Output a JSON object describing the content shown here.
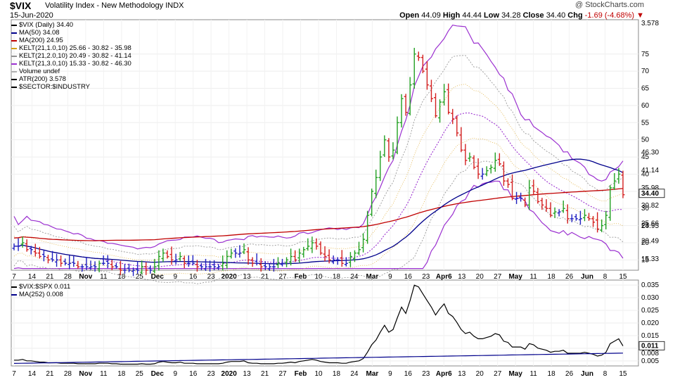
{
  "header": {
    "symbol": "$VIX",
    "name": "Volatility Index - New Methodology  INDX",
    "date": "15-Jun-2020",
    "brand": "@ StockCharts.com",
    "open_label": "Open",
    "open": "44.09",
    "high_label": "High",
    "high": "44.44",
    "low_label": "Low",
    "low": "34.28",
    "close_label": "Close",
    "close": "34.40",
    "chg_label": "Chg",
    "chg": "-1.69 (-4.68%)",
    "chg_icon": "down-triangle-icon"
  },
  "legend": [
    {
      "text": "$VIX (Daily) 34.40",
      "color": "#000000"
    },
    {
      "text": "MA(50) 34.08",
      "color": "#00008b"
    },
    {
      "text": "MA(200) 24.95",
      "color": "#c00000"
    },
    {
      "text": "KELT(21,1.0,10) 25.66 - 30.82 - 35.98",
      "color": "#d4a017"
    },
    {
      "text": "KELT(21,2.0,10) 20.49 - 30.82 - 41.14",
      "color": "#909090"
    },
    {
      "text": "KELT(21,3.0,10) 15.33 - 30.82 - 46.30",
      "color": "#9b30d0"
    },
    {
      "text": "Volume undef",
      "color": "#b0b0b0"
    },
    {
      "text": "ATR(200) 3.578",
      "color": "#000000"
    },
    {
      "text": "$SECTOR:$INDUSTRY",
      "color": "#000000"
    }
  ],
  "legend2": [
    {
      "text": "$VIX:$SPX 0.011",
      "color": "#000000"
    },
    {
      "text": "MA(252) 0.008",
      "color": "#00008b"
    }
  ],
  "colors": {
    "up": "#22a022",
    "down": "#d42020",
    "neutral": "#2020c0",
    "ma50": "#00008b",
    "ma200": "#c00000",
    "k1": "#e0b040",
    "k2": "#999999",
    "k3": "#9b30d0"
  },
  "chart_data": [
    {
      "type": "candlestick",
      "title": "$VIX (Daily)",
      "x_tick_labels": [
        "7",
        "14",
        "21",
        "28",
        "Nov",
        "11",
        "18",
        "25",
        "Dec",
        "9",
        "16",
        "23",
        "2020",
        "13",
        "21",
        "27",
        "Feb",
        "10",
        "18",
        "24",
        "Mar",
        "9",
        "16",
        "23",
        "Apr6",
        "13",
        "20",
        "27",
        "May",
        "11",
        "18",
        "26",
        "Jun",
        "8",
        "15"
      ],
      "y_tick_labels": [
        "75",
        "70",
        "65",
        "60",
        "55",
        "50",
        "45",
        "40",
        "35",
        "30",
        "25",
        "20",
        "15"
      ],
      "ylim": [
        12,
        85
      ],
      "right_labels": [
        "3.578",
        "46.30",
        "41.14",
        "35.98",
        "34.40",
        "30.82",
        "25.66",
        "24.95",
        "20.49",
        "15.33"
      ],
      "close_series": [
        19,
        19,
        20,
        18,
        18,
        17,
        16,
        16,
        15,
        15,
        15,
        14,
        14,
        14,
        14,
        13,
        13,
        13,
        13,
        13,
        14,
        14,
        14,
        13,
        13,
        12,
        12,
        12,
        12,
        12,
        13,
        12,
        12,
        13,
        16,
        17,
        16,
        15,
        15,
        16,
        14,
        14,
        14,
        13,
        13,
        13,
        13,
        13,
        13,
        14,
        16,
        17,
        17,
        17,
        18,
        15,
        14,
        14,
        13,
        13,
        13,
        13,
        14,
        14,
        15,
        16,
        15,
        17,
        18,
        19,
        20,
        19,
        17,
        16,
        15,
        15,
        15,
        14,
        14,
        16,
        17,
        18,
        21,
        28,
        35,
        39,
        45,
        50,
        45,
        47,
        55,
        62,
        58,
        66,
        75,
        74,
        70,
        66,
        62,
        57,
        61,
        64,
        58,
        56,
        52,
        47,
        44,
        45,
        42,
        40,
        40,
        41,
        42,
        44,
        43,
        38,
        37,
        33,
        33,
        33,
        31,
        36,
        35,
        32,
        31,
        30,
        28,
        29,
        29,
        30,
        27,
        27,
        27,
        27,
        28,
        27,
        26,
        24,
        25,
        28,
        36,
        38,
        40,
        34
      ],
      "series": [
        {
          "name": "MA(50)",
          "value": 34.08
        },
        {
          "name": "MA(200)",
          "value": 24.95
        },
        {
          "name": "KELT(21,1.0,10)",
          "values": [
            25.66,
            30.82,
            35.98
          ]
        },
        {
          "name": "KELT(21,2.0,10)",
          "values": [
            20.49,
            30.82,
            41.14
          ]
        },
        {
          "name": "KELT(21,3.0,10)",
          "values": [
            15.33,
            30.82,
            46.3
          ]
        }
      ]
    },
    {
      "type": "line",
      "title": "$VIX:$SPX",
      "y_tick_labels": [
        "0.035",
        "0.030",
        "0.025",
        "0.020",
        "0.015",
        "0.010",
        "0.005"
      ],
      "ylim": [
        0.003,
        0.037
      ],
      "right_labels": [
        "0.011",
        "0.008"
      ],
      "series": [
        {
          "name": "$VIX:$SPX",
          "value": 0.011
        },
        {
          "name": "MA(252)",
          "value": 0.008
        }
      ]
    }
  ]
}
